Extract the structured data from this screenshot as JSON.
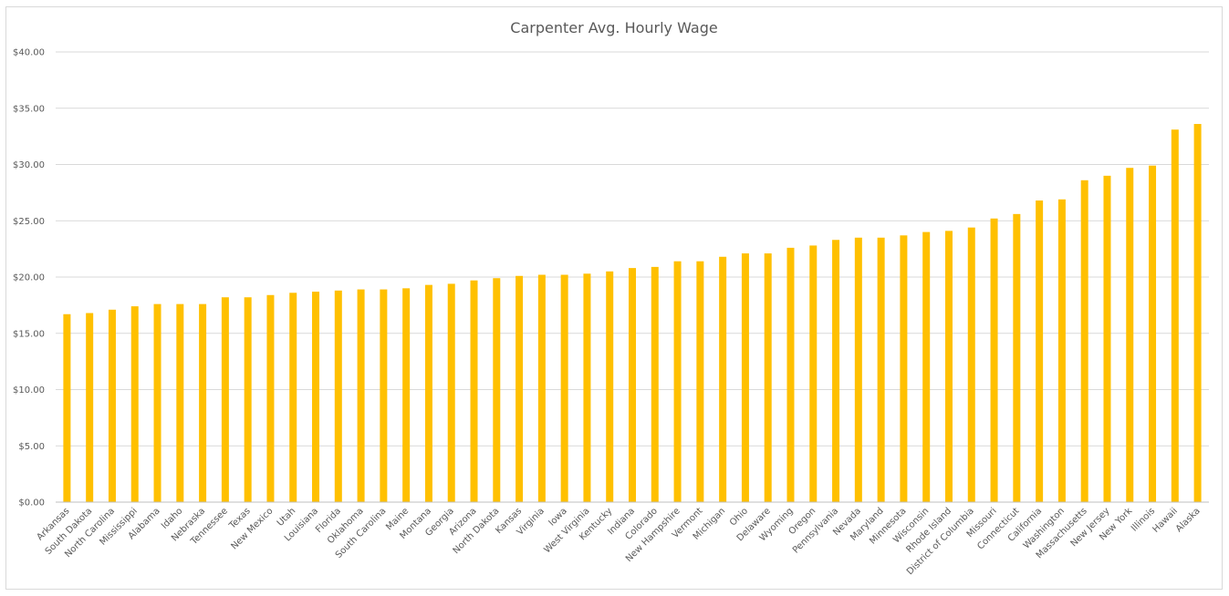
{
  "chart_data": {
    "type": "bar",
    "title": "Carpenter Avg. Hourly Wage",
    "xlabel": "",
    "ylabel": "",
    "ylim": [
      0,
      40
    ],
    "yticks": [
      0,
      5,
      10,
      15,
      20,
      25,
      30,
      35,
      40
    ],
    "ytick_labels": [
      "$0.00",
      "$5.00",
      "$10.00",
      "$15.00",
      "$20.00",
      "$25.00",
      "$30.00",
      "$35.00",
      "$40.00"
    ],
    "grid": true,
    "legend": "none",
    "bar_color": "#FFC000",
    "categories": [
      "Arkansas",
      "South Dakota",
      "North Carolina",
      "Mississippi",
      "Alabama",
      "Idaho",
      "Nebraska",
      "Tennessee",
      "Texas",
      "New Mexico",
      "Utah",
      "Louisiana",
      "Florida",
      "Oklahoma",
      "South Carolina",
      "Maine",
      "Montana",
      "Georgia",
      "Arizona",
      "North Dakota",
      "Kansas",
      "Virginia",
      "Iowa",
      "West Virginia",
      "Kentucky",
      "Indiana",
      "Colorado",
      "New Hampshire",
      "Vermont",
      "Michigan",
      "Ohio",
      "Delaware",
      "Wyoming",
      "Oregon",
      "Pennsylvania",
      "Nevada",
      "Maryland",
      "Minnesota",
      "Wisconsin",
      "Rhode Island",
      "District of Columbia",
      "Missouri",
      "Connecticut",
      "California",
      "Washington",
      "Massachusetts",
      "New Jersey",
      "New York",
      "Illinois",
      "Hawaii",
      "Alaska"
    ],
    "values": [
      16.7,
      16.8,
      17.1,
      17.4,
      17.6,
      17.6,
      17.6,
      18.2,
      18.2,
      18.4,
      18.6,
      18.7,
      18.8,
      18.9,
      18.9,
      19.0,
      19.3,
      19.4,
      19.7,
      19.9,
      20.1,
      20.2,
      20.2,
      20.3,
      20.5,
      20.8,
      20.9,
      21.4,
      21.4,
      21.8,
      22.1,
      22.1,
      22.6,
      22.8,
      23.3,
      23.5,
      23.5,
      23.7,
      24.0,
      24.1,
      24.4,
      25.2,
      25.6,
      26.8,
      26.9,
      28.6,
      29.0,
      29.7,
      29.9,
      33.1,
      33.6
    ]
  }
}
